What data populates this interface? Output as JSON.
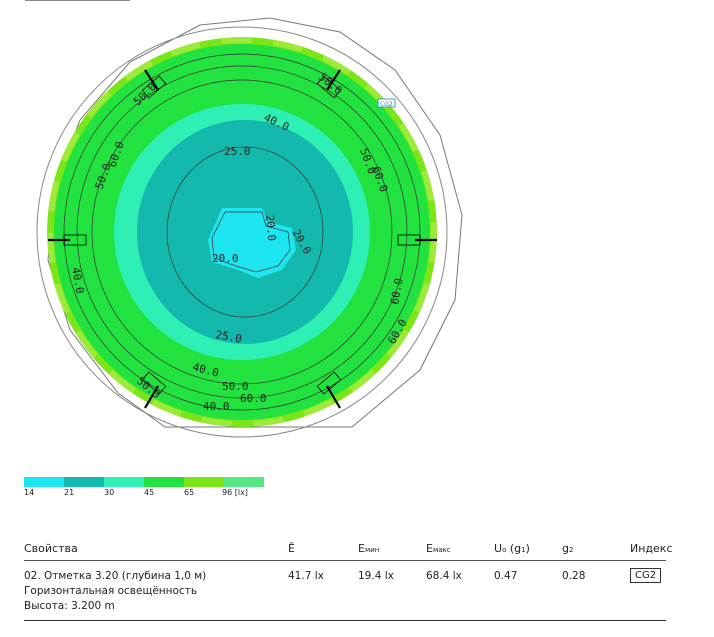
{
  "plot": {
    "contour_labels": [
      "25.0",
      "40.0",
      "50.0",
      "60.0",
      "20.0",
      "20.0",
      "20.0",
      "25.0",
      "40.0",
      "50.0",
      "60.0",
      "40.0",
      "50.0",
      "60.0",
      "40.0",
      "50.0",
      "60.0",
      "50.0",
      "60.0",
      "50.0"
    ],
    "grid_badge": "CG2"
  },
  "legend": {
    "colors": [
      "#1ee6f0",
      "#13b9ad",
      "#2ef0b4",
      "#22e23f",
      "#7ae617",
      "#55e882"
    ],
    "ticks": [
      "14",
      "21",
      "30",
      "45",
      "65",
      "96 [lx]"
    ]
  },
  "table": {
    "headers": {
      "props": "Свойства",
      "e_avg": "Ē",
      "e_min": "E",
      "e_min_sub": "мин",
      "e_max": "E",
      "e_max_sub": "макс",
      "u0": "U",
      "u0_sub": "o",
      "u0_rest": " (g",
      "u0_sub2": "1",
      "u0_end": ")",
      "g2": "g",
      "g2_sub": "2",
      "index": "Индекс"
    },
    "row": {
      "name": "02. Отметка 3.20 (глубина 1,0 м)",
      "type": "Горизонтальная освещённость",
      "height": "Высота: 3.200 m",
      "e_avg": "41.7 lx",
      "e_min": "19.4 lx",
      "e_max": "68.4 lx",
      "u0": "0.47",
      "g2": "0.28",
      "index": "CG2"
    }
  }
}
